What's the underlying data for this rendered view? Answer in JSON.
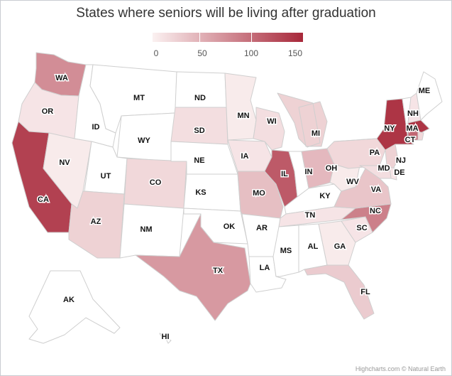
{
  "title": "States where seniors will be living after graduation",
  "credits": "Highcharts.com © Natural Earth",
  "legend": {
    "min": 0,
    "max": 160,
    "ticks": [
      "0",
      "50",
      "100",
      "150"
    ],
    "min_color": "#fbf1f1",
    "max_color": "#a8283a"
  },
  "chart_data": {
    "type": "map",
    "title": "States where seniors will be living after graduation",
    "value_range": [
      0,
      160
    ],
    "states": [
      {
        "code": "WA",
        "value": 80
      },
      {
        "code": "OR",
        "value": 10
      },
      {
        "code": "CA",
        "value": 140
      },
      {
        "code": "NV",
        "value": 5
      },
      {
        "code": "ID",
        "value": 0
      },
      {
        "code": "MT",
        "value": 0
      },
      {
        "code": "WY",
        "value": 0
      },
      {
        "code": "UT",
        "value": 0
      },
      {
        "code": "AZ",
        "value": 25
      },
      {
        "code": "CO",
        "value": 20
      },
      {
        "code": "NM",
        "value": 0
      },
      {
        "code": "ND",
        "value": 0
      },
      {
        "code": "SD",
        "value": 15
      },
      {
        "code": "NE",
        "value": 0
      },
      {
        "code": "KS",
        "value": 0
      },
      {
        "code": "OK",
        "value": 0
      },
      {
        "code": "TX",
        "value": 70
      },
      {
        "code": "MN",
        "value": 5
      },
      {
        "code": "IA",
        "value": 10
      },
      {
        "code": "MO",
        "value": 40
      },
      {
        "code": "AR",
        "value": 0
      },
      {
        "code": "LA",
        "value": 0
      },
      {
        "code": "WI",
        "value": 15
      },
      {
        "code": "IL",
        "value": 120
      },
      {
        "code": "MI",
        "value": 25
      },
      {
        "code": "IN",
        "value": 0
      },
      {
        "code": "OH",
        "value": 45
      },
      {
        "code": "KY",
        "value": 0
      },
      {
        "code": "TN",
        "value": 10
      },
      {
        "code": "MS",
        "value": 0
      },
      {
        "code": "AL",
        "value": 0
      },
      {
        "code": "GA",
        "value": 5
      },
      {
        "code": "FL",
        "value": 30
      },
      {
        "code": "SC",
        "value": 10
      },
      {
        "code": "NC",
        "value": 90
      },
      {
        "code": "VA",
        "value": 35
      },
      {
        "code": "WV",
        "value": 5
      },
      {
        "code": "PA",
        "value": 20
      },
      {
        "code": "NY",
        "value": 150
      },
      {
        "code": "VT",
        "value": 0
      },
      {
        "code": "NH",
        "value": 10
      },
      {
        "code": "ME",
        "value": 0
      },
      {
        "code": "MA",
        "value": 150
      },
      {
        "code": "CT",
        "value": 110
      },
      {
        "code": "RI",
        "value": 20
      },
      {
        "code": "NJ",
        "value": 25
      },
      {
        "code": "DE",
        "value": 10
      },
      {
        "code": "MD",
        "value": 15
      },
      {
        "code": "AK",
        "value": 0
      },
      {
        "code": "HI",
        "value": 0
      }
    ]
  }
}
